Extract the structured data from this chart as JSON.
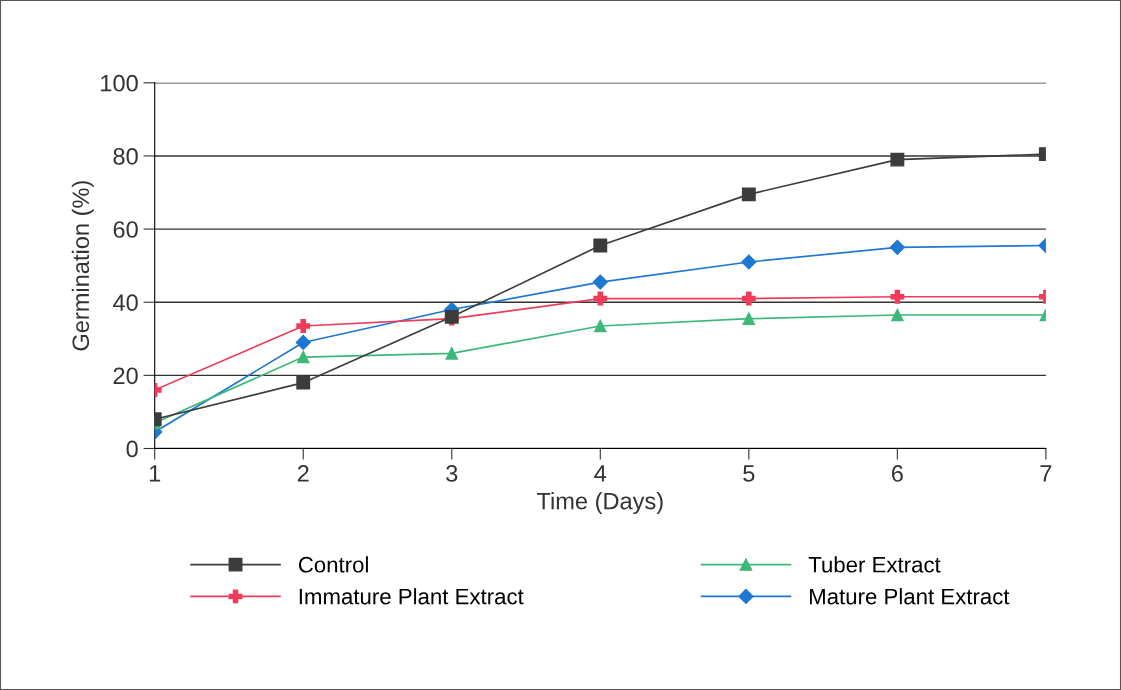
{
  "chart_data": {
    "type": "line",
    "xlabel": "Time (Days)",
    "ylabel": "Germination (%)",
    "x": [
      1,
      2,
      3,
      4,
      5,
      6,
      7
    ],
    "series": [
      {
        "name": "Control",
        "color": "#3c3c3c",
        "marker": "square",
        "values": [
          8,
          18,
          36,
          55.5,
          69.5,
          79,
          80.5
        ]
      },
      {
        "name": "Immature Plant Extract",
        "color": "#f03c5a",
        "marker": "cross",
        "values": [
          16,
          33.5,
          35.5,
          41,
          41,
          41.5,
          41.5
        ]
      },
      {
        "name": "Tuber Extract",
        "color": "#3cb878",
        "marker": "triangle",
        "values": [
          7,
          25,
          26,
          33.5,
          35.5,
          36.5,
          36.5
        ]
      },
      {
        "name": "Mature Plant Extract",
        "color": "#1e78d2",
        "marker": "diamond",
        "values": [
          4.5,
          29,
          38,
          45.5,
          51,
          55,
          55.5
        ]
      }
    ],
    "xlim": [
      1,
      7
    ],
    "xticks": [
      1,
      2,
      3,
      4,
      5,
      6,
      7
    ],
    "ylim": [
      0,
      100
    ],
    "yticks": [
      0,
      20,
      40,
      60,
      80,
      100
    ],
    "grid": "y",
    "legend": "bottom",
    "line_style": "solid"
  }
}
